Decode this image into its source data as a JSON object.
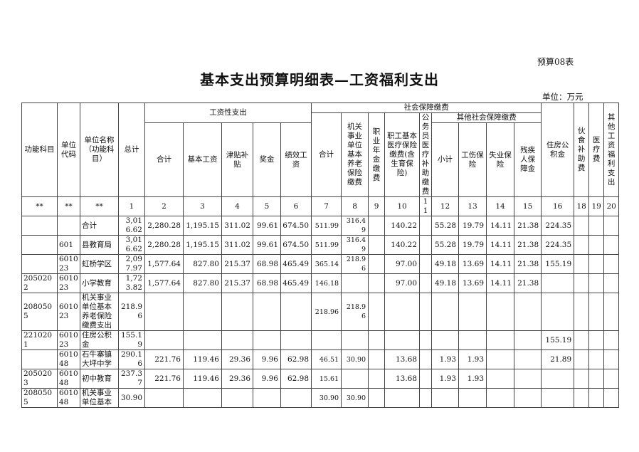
{
  "form_no": "预算08表",
  "title": "基本支出预算明细表—工资福利支出",
  "unit": "单位：万元",
  "headers": {
    "func": "功能科目",
    "code": "单位代码",
    "name": "单位名称（功能科目）",
    "total": "总计",
    "wage_group": "工资性支出",
    "wage_sum": "合计",
    "basic_wage": "基本工资",
    "allowance": "津贴补贴",
    "bonus": "奖金",
    "performance": "绩效工资",
    "social_group": "社会保障缴费",
    "social_sum": "合计",
    "pension": "机关事业单位基本养老保险缴费",
    "annuity": "职业年金缴费",
    "medical": "职工基本医疗保险缴费(含生育保险)",
    "civil_medical": "公务员医疗补助缴费",
    "other_social_group": "其他社会保障缴费",
    "other_sub": "小计",
    "injury": "工伤保险",
    "unemployment": "失业保险",
    "disabled": "残疾人保障金",
    "housing": "住房公积金",
    "meal": "伙食补助费",
    "medical_fee": "医疗费",
    "other_welfare": "其他工资福利支出"
  },
  "index_row": [
    "**",
    "**",
    "**",
    "1",
    "2",
    "3",
    "4",
    "5",
    "6",
    "7",
    "8",
    "9",
    "10",
    "11",
    "12",
    "13",
    "14",
    "15",
    "16",
    "18",
    "19",
    "20"
  ],
  "rows": [
    [
      "",
      "",
      "合计",
      "3,016.62",
      "2,280.28",
      "1,195.15",
      "311.02",
      "99.61",
      "674.50",
      "511.99",
      "316.49",
      "",
      "140.22",
      "",
      "55.28",
      "19.79",
      "14.11",
      "21.38",
      "224.35",
      "",
      "",
      ""
    ],
    [
      "",
      "601",
      "县教育局",
      "3,016.62",
      "2,280.28",
      "1,195.15",
      "311.02",
      "99.61",
      "674.50",
      "511.99",
      "316.49",
      "",
      "140.22",
      "",
      "55.28",
      "19.79",
      "14.11",
      "21.38",
      "224.35",
      "",
      "",
      ""
    ],
    [
      "",
      "601023",
      "虹桥学区",
      "2,097.97",
      "1,577.64",
      "827.80",
      "215.37",
      "68.98",
      "465.49",
      "365.14",
      "218.96",
      "",
      "97.00",
      "",
      "49.18",
      "13.69",
      "14.11",
      "21.38",
      "155.19",
      "",
      "",
      ""
    ],
    [
      "2050202",
      "601023",
      "小学教育",
      "1,723.82",
      "1,577.64",
      "827.80",
      "215.37",
      "68.98",
      "465.49",
      "146.18",
      "",
      "",
      "97.00",
      "",
      "49.18",
      "13.69",
      "14.11",
      "21.38",
      "",
      "",
      "",
      ""
    ],
    [
      "2080505",
      "601023",
      "机关事业单位基本养老保险缴费支出",
      "218.96",
      "",
      "",
      "",
      "",
      "",
      "218.96",
      "218.96",
      "",
      "",
      "",
      "",
      "",
      "",
      "",
      "",
      "",
      "",
      ""
    ],
    [
      "2210201",
      "601023",
      "住房公积金",
      "155.19",
      "",
      "",
      "",
      "",
      "",
      "",
      "",
      "",
      "",
      "",
      "",
      "",
      "",
      "",
      "155.19",
      "",
      "",
      ""
    ],
    [
      "",
      "601048",
      "石牛寨镇大坪中学",
      "290.16",
      "221.76",
      "119.46",
      "29.36",
      "9.96",
      "62.98",
      "46.51",
      "30.90",
      "",
      "13.68",
      "",
      "1.93",
      "1.93",
      "",
      "",
      "21.89",
      "",
      "",
      ""
    ],
    [
      "2050203",
      "601048",
      "初中教育",
      "237.37",
      "221.76",
      "119.46",
      "29.36",
      "9.96",
      "62.98",
      "15.61",
      "",
      "",
      "13.68",
      "",
      "1.93",
      "1.93",
      "",
      "",
      "",
      "",
      "",
      ""
    ],
    [
      "2080505",
      "601048",
      "机关事业单位基本",
      "30.90",
      "",
      "",
      "",
      "",
      "",
      "30.90",
      "30.90",
      "",
      "",
      "",
      "",
      "",
      "",
      "",
      "",
      "",
      "",
      ""
    ]
  ]
}
